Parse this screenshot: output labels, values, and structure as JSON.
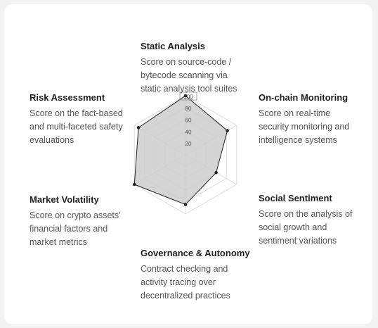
{
  "dimensions": [
    {
      "title": "Static Analysis",
      "desc": [
        "Score on source-code /",
        "bytecode scanning via",
        "static analysis tool suites"
      ]
    },
    {
      "title": "On-chain Monitoring",
      "desc": [
        "Score on real-time",
        "security monitoring and",
        "intelligence systems"
      ]
    },
    {
      "title": "Social Sentiment",
      "desc": [
        "Score on the analysis of",
        "social growth and",
        "sentiment variations"
      ]
    },
    {
      "title": "Governance & Autonomy",
      "desc": [
        "Contract checking and",
        "activity tracing over",
        "decentralized practices"
      ]
    },
    {
      "title": "Market Volatility",
      "desc": [
        "Score on crypto assets'",
        "financial factors and",
        "market metrics"
      ]
    },
    {
      "title": "Risk Assessment",
      "desc": [
        "Score on the fact-based",
        "and multi-faceted safety",
        "evaluations"
      ]
    }
  ],
  "chart_data": {
    "type": "radar",
    "axes": [
      "Static Analysis",
      "On-chain Monitoring",
      "Social Sentiment",
      "Governance & Autonomy",
      "Market Volatility",
      "Risk Assessment"
    ],
    "values": [
      100,
      82,
      60,
      84,
      100,
      92
    ],
    "rlim": [
      0,
      100
    ],
    "ticks": [
      "20",
      "40",
      "60",
      "80",
      "100"
    ],
    "colors": {
      "fill": "#cccccc",
      "stroke": "#222222",
      "grid": "#dddddd"
    }
  }
}
